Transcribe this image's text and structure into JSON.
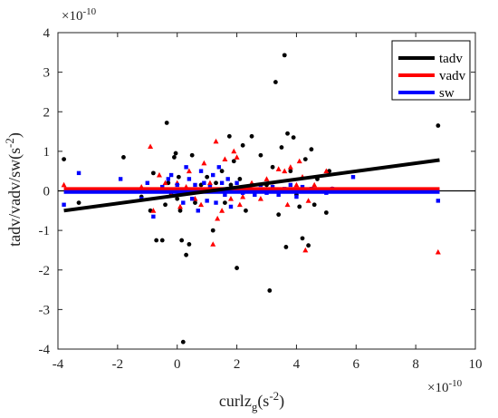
{
  "chart_data": {
    "type": "scatter",
    "xlabel_main": "curlz",
    "xlabel_sub": "g",
    "xlabel_unit": "(s",
    "xlabel_exp": "-2",
    "xlabel_close": ")",
    "ylabel_main": "tadv/vadv/sw(s",
    "ylabel_exp": "-2",
    "ylabel_close": ")",
    "x_multiplier_base": "×10",
    "x_multiplier_exp": "-10",
    "y_multiplier_base": "×10",
    "y_multiplier_exp": "-10",
    "xlim": [
      -4,
      10
    ],
    "ylim": [
      -4,
      4
    ],
    "xticks": [
      -4,
      -2,
      0,
      2,
      4,
      6,
      8,
      10
    ],
    "yticks": [
      -4,
      -3,
      -2,
      -1,
      0,
      1,
      2,
      3,
      4
    ],
    "zero_line": true,
    "grid": false,
    "legend_position": "top-right",
    "series": [
      {
        "name": "tadv",
        "color": "#000000",
        "marker": "circle",
        "fit": {
          "x": [
            -3.8,
            8.8
          ],
          "y": [
            -0.5,
            0.78
          ]
        },
        "points": [
          [
            -3.8,
            0.8
          ],
          [
            -3.3,
            -0.3
          ],
          [
            -1.8,
            0.85
          ],
          [
            -1.2,
            -0.15
          ],
          [
            -0.9,
            -0.5
          ],
          [
            -0.8,
            0.45
          ],
          [
            -0.7,
            -1.25
          ],
          [
            -0.5,
            -1.25
          ],
          [
            -0.4,
            -0.35
          ],
          [
            -0.35,
            1.72
          ],
          [
            -0.3,
            0.2
          ],
          [
            -0.2,
            -0.1
          ],
          [
            -0.1,
            0.85
          ],
          [
            -0.05,
            0.95
          ],
          [
            0.0,
            -0.2
          ],
          [
            0.05,
            0.35
          ],
          [
            0.1,
            -0.5
          ],
          [
            0.15,
            -1.25
          ],
          [
            0.2,
            -3.82
          ],
          [
            0.3,
            -1.62
          ],
          [
            0.4,
            -1.35
          ],
          [
            0.5,
            0.9
          ],
          [
            0.6,
            -0.3
          ],
          [
            0.8,
            0.15
          ],
          [
            1.0,
            0.35
          ],
          [
            1.2,
            -1.0
          ],
          [
            1.3,
            0.2
          ],
          [
            1.5,
            0.5
          ],
          [
            1.6,
            -0.3
          ],
          [
            1.75,
            1.38
          ],
          [
            1.8,
            0.15
          ],
          [
            1.9,
            0.75
          ],
          [
            2.0,
            -1.95
          ],
          [
            2.1,
            0.3
          ],
          [
            2.2,
            1.15
          ],
          [
            2.3,
            -0.5
          ],
          [
            2.5,
            1.38
          ],
          [
            2.8,
            0.9
          ],
          [
            3.0,
            0.15
          ],
          [
            3.1,
            -2.52
          ],
          [
            3.2,
            0.6
          ],
          [
            3.3,
            2.75
          ],
          [
            3.4,
            -0.6
          ],
          [
            3.5,
            1.1
          ],
          [
            3.6,
            3.43
          ],
          [
            3.65,
            -1.42
          ],
          [
            3.7,
            1.45
          ],
          [
            3.8,
            0.5
          ],
          [
            3.9,
            1.35
          ],
          [
            4.0,
            -0.1
          ],
          [
            4.1,
            -0.4
          ],
          [
            4.2,
            -1.2
          ],
          [
            4.3,
            0.8
          ],
          [
            4.4,
            -1.38
          ],
          [
            4.5,
            1.05
          ],
          [
            4.6,
            -0.35
          ],
          [
            4.7,
            0.3
          ],
          [
            5.0,
            -0.55
          ],
          [
            5.1,
            0.5
          ],
          [
            8.75,
            1.65
          ]
        ]
      },
      {
        "name": "vadv",
        "color": "#ff0000",
        "marker": "triangle",
        "fit": {
          "x": [
            -3.8,
            8.8
          ],
          "y": [
            0.05,
            0.05
          ]
        },
        "points": [
          [
            -3.8,
            0.15
          ],
          [
            -1.2,
            0.1
          ],
          [
            -0.9,
            1.12
          ],
          [
            -0.8,
            -0.5
          ],
          [
            -0.6,
            0.4
          ],
          [
            -0.4,
            0.2
          ],
          [
            -0.2,
            -0.1
          ],
          [
            0.0,
            0.2
          ],
          [
            0.1,
            -0.4
          ],
          [
            0.3,
            0.1
          ],
          [
            0.4,
            0.5
          ],
          [
            0.6,
            -0.2
          ],
          [
            0.8,
            -0.35
          ],
          [
            0.9,
            0.7
          ],
          [
            1.1,
            0.2
          ],
          [
            1.2,
            -1.35
          ],
          [
            1.3,
            1.25
          ],
          [
            1.35,
            -0.7
          ],
          [
            1.5,
            -0.5
          ],
          [
            1.6,
            0.8
          ],
          [
            1.8,
            -0.2
          ],
          [
            1.9,
            1.0
          ],
          [
            2.0,
            0.85
          ],
          [
            2.1,
            -0.35
          ],
          [
            2.2,
            -0.15
          ],
          [
            2.5,
            0.2
          ],
          [
            2.8,
            -0.2
          ],
          [
            3.0,
            0.3
          ],
          [
            3.2,
            0.1
          ],
          [
            3.4,
            0.55
          ],
          [
            3.6,
            0.5
          ],
          [
            3.7,
            -0.35
          ],
          [
            3.8,
            0.6
          ],
          [
            4.0,
            0.15
          ],
          [
            4.1,
            0.75
          ],
          [
            4.2,
            0.35
          ],
          [
            4.3,
            -1.5
          ],
          [
            4.4,
            -0.25
          ],
          [
            4.6,
            0.15
          ],
          [
            5.0,
            0.5
          ],
          [
            5.2,
            0.05
          ],
          [
            8.75,
            -1.55
          ]
        ]
      },
      {
        "name": "sw",
        "color": "#0000ff",
        "marker": "square",
        "fit": {
          "x": [
            -3.8,
            8.8
          ],
          "y": [
            -0.03,
            -0.03
          ]
        },
        "points": [
          [
            -3.8,
            -0.35
          ],
          [
            -3.3,
            0.45
          ],
          [
            -1.9,
            0.3
          ],
          [
            -1.2,
            -0.2
          ],
          [
            -1.0,
            0.2
          ],
          [
            -0.8,
            -0.65
          ],
          [
            -0.5,
            0.1
          ],
          [
            -0.3,
            0.3
          ],
          [
            -0.2,
            0.4
          ],
          [
            0.0,
            0.15
          ],
          [
            0.2,
            -0.3
          ],
          [
            0.3,
            0.6
          ],
          [
            0.4,
            0.3
          ],
          [
            0.5,
            -0.2
          ],
          [
            0.6,
            0.15
          ],
          [
            0.7,
            -0.5
          ],
          [
            0.8,
            0.5
          ],
          [
            0.9,
            0.2
          ],
          [
            1.0,
            -0.25
          ],
          [
            1.1,
            0.1
          ],
          [
            1.2,
            0.4
          ],
          [
            1.3,
            -0.3
          ],
          [
            1.4,
            0.6
          ],
          [
            1.5,
            0.2
          ],
          [
            1.6,
            -0.1
          ],
          [
            1.7,
            0.3
          ],
          [
            1.8,
            -0.4
          ],
          [
            2.0,
            0.2
          ],
          [
            2.1,
            0.05
          ],
          [
            2.2,
            -0.05
          ],
          [
            2.4,
            0.1
          ],
          [
            2.6,
            -0.1
          ],
          [
            2.8,
            0.15
          ],
          [
            3.0,
            -0.05
          ],
          [
            3.2,
            0.1
          ],
          [
            3.4,
            -0.1
          ],
          [
            3.6,
            0.05
          ],
          [
            3.8,
            0.15
          ],
          [
            4.0,
            -0.15
          ],
          [
            4.2,
            0.1
          ],
          [
            4.5,
            0.05
          ],
          [
            5.0,
            -0.05
          ],
          [
            5.2,
            0.05
          ],
          [
            5.9,
            0.35
          ],
          [
            8.75,
            -0.25
          ]
        ]
      }
    ]
  }
}
